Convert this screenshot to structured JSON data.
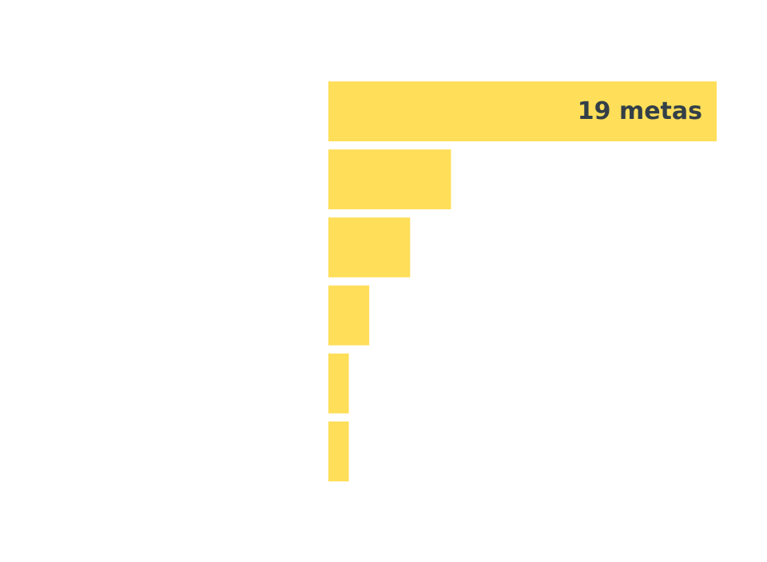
{
  "chart_data": {
    "type": "bar",
    "orientation": "horizontal",
    "categories": [
      "",
      "",
      "",
      "",
      "",
      ""
    ],
    "values": [
      19,
      6,
      4,
      2,
      1,
      1
    ],
    "data_labels": [
      "19 metas",
      "",
      "",
      "",
      "",
      ""
    ],
    "xlim": [
      0,
      19
    ],
    "title": "",
    "xlabel": "",
    "ylabel": "",
    "grid": false,
    "legend": "none",
    "colors": {
      "bar": "#ffde59",
      "label": "#333f48",
      "background": "#ffffff"
    }
  }
}
